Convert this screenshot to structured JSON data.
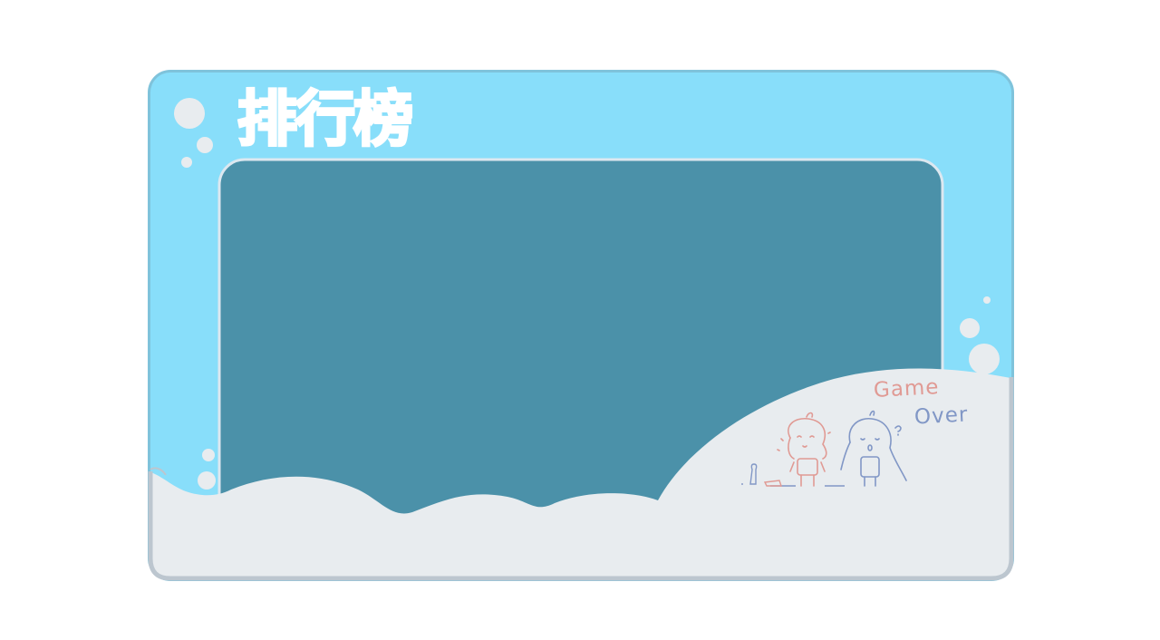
{
  "leaderboard": {
    "title": "排行榜",
    "entries": []
  },
  "decoration": {
    "game_over_word1": "Game",
    "game_over_word2": "Over",
    "illustration": "two-chibi-girls-sketch"
  },
  "colors": {
    "frame_outer": "#7fc3db",
    "frame_fill": "#88defa",
    "screen_fill": "#4b91a9",
    "screen_border": "#dce8f0",
    "cloud_fill": "#e8ecef",
    "cloud_border": "#bcc6cf",
    "sketch_pink": "#e09a94",
    "sketch_blue": "#8197c6"
  }
}
